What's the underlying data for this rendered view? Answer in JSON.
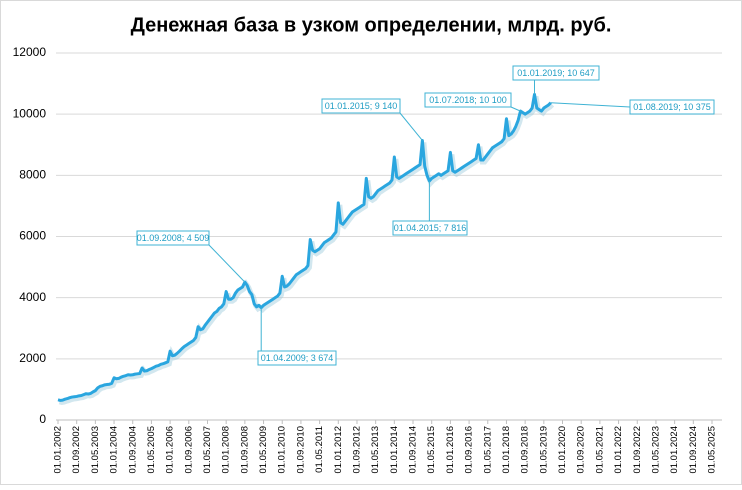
{
  "chart_data": {
    "type": "line",
    "title": "Денежная база в узком определении, млрд. руб.",
    "color": "#2aa6df",
    "ylim": [
      0,
      12000
    ],
    "yticks": [
      0,
      2000,
      4000,
      6000,
      8000,
      10000,
      12000
    ],
    "grid": true,
    "categories": [
      "01.01.2002",
      null,
      null,
      null,
      null,
      null,
      null,
      null,
      "01.09.2002",
      null,
      null,
      null,
      null,
      null,
      null,
      null,
      "01.05.2003",
      null,
      null,
      null,
      null,
      null,
      null,
      null,
      "01.01.2004",
      null,
      null,
      null,
      null,
      null,
      null,
      null,
      "01.09.2004",
      null,
      null,
      null,
      null,
      null,
      null,
      null,
      "01.05.2005",
      null,
      null,
      null,
      null,
      null,
      null,
      null,
      "01.01.2006",
      null,
      null,
      null,
      null,
      null,
      null,
      null,
      "01.09.2006",
      null,
      null,
      null,
      null,
      null,
      null,
      null,
      "01.05.2007",
      null,
      null,
      null,
      null,
      null,
      null,
      null,
      "01.01.2008",
      null,
      null,
      null,
      null,
      null,
      null,
      null,
      "01.09.2008",
      null,
      null,
      null,
      null,
      null,
      null,
      null,
      "01.05.2009",
      null,
      null,
      null,
      null,
      null,
      null,
      null,
      "01.01.2010",
      null,
      null,
      null,
      null,
      null,
      null,
      null,
      "01.09.2010",
      null,
      null,
      null,
      null,
      null,
      null,
      null,
      "01.05.2011",
      null,
      null,
      null,
      null,
      null,
      null,
      null,
      "01.01.2012",
      null,
      null,
      null,
      null,
      null,
      null,
      null,
      "01.09.2012",
      null,
      null,
      null,
      null,
      null,
      null,
      null,
      "01.05.2013",
      null,
      null,
      null,
      null,
      null,
      null,
      null,
      "01.01.2014",
      null,
      null,
      null,
      null,
      null,
      null,
      null,
      "01.09.2014",
      null,
      null,
      null,
      null,
      null,
      null,
      null,
      "01.05.2015",
      null,
      null,
      null,
      null,
      null,
      null,
      null,
      "01.01.2016",
      null,
      null,
      null,
      null,
      null,
      null,
      null,
      "01.09.2016",
      null,
      null,
      null,
      null,
      null,
      null,
      null,
      "01.05.2017",
      null,
      null,
      null,
      null,
      null,
      null,
      null,
      "01.01.2018",
      null,
      null,
      null,
      null,
      null,
      null,
      null,
      "01.09.2018",
      null,
      null,
      null,
      null,
      null,
      null,
      null,
      "01.05.2019",
      null,
      null,
      null,
      null,
      null,
      null,
      null,
      "01.01.2020",
      null,
      null,
      null,
      null,
      null,
      null,
      null,
      "01.09.2020",
      null,
      null,
      null,
      null,
      null,
      null,
      null,
      "01.05.2021",
      null,
      null,
      null,
      null,
      null,
      null,
      null,
      "01.01.2022",
      null,
      null,
      null,
      null,
      null,
      null,
      null,
      "01.09.2022",
      null,
      null,
      null,
      null,
      null,
      null,
      null,
      "01.05.2023",
      null,
      null,
      null,
      null,
      null,
      null,
      null,
      "01.01.2024",
      null,
      null,
      null,
      null,
      null,
      null,
      null,
      "01.09.2024",
      null,
      null,
      null,
      null,
      null,
      null,
      null,
      "01.05.2025"
    ],
    "values": [
      660,
      640,
      650,
      680,
      700,
      730,
      750,
      760,
      770,
      790,
      800,
      830,
      860,
      850,
      870,
      920,
      960,
      1050,
      1100,
      1120,
      1150,
      1160,
      1170,
      1200,
      1380,
      1350,
      1360,
      1400,
      1430,
      1450,
      1480,
      1470,
      1480,
      1500,
      1510,
      1520,
      1700,
      1600,
      1610,
      1650,
      1680,
      1720,
      1760,
      1780,
      1820,
      1840,
      1870,
      1900,
      2250,
      2100,
      2120,
      2180,
      2250,
      2330,
      2400,
      2450,
      2500,
      2550,
      2600,
      2700,
      3050,
      2950,
      2980,
      3100,
      3200,
      3300,
      3400,
      3500,
      3550,
      3650,
      3700,
      3800,
      4200,
      3950,
      3950,
      4000,
      4150,
      4250,
      4300,
      4350,
      4509,
      4400,
      4200,
      4100,
      3800,
      3700,
      3750,
      3674,
      3750,
      3800,
      3850,
      3900,
      3950,
      4000,
      4050,
      4150,
      4700,
      4350,
      4380,
      4450,
      4550,
      4650,
      4750,
      4800,
      4850,
      4900,
      4950,
      5050,
      5900,
      5550,
      5500,
      5550,
      5600,
      5700,
      5800,
      5850,
      5900,
      5950,
      6050,
      6150,
      7100,
      6450,
      6400,
      6500,
      6600,
      6700,
      6800,
      6850,
      6900,
      6950,
      7000,
      7050,
      7900,
      7300,
      7250,
      7300,
      7400,
      7500,
      7550,
      7600,
      7650,
      7700,
      7750,
      7850,
      8600,
      7950,
      7900,
      7950,
      8000,
      8050,
      8100,
      8150,
      8200,
      8250,
      8300,
      8350,
      9140,
      8300,
      8000,
      7816,
      7900,
      7950,
      8000,
      8050,
      8000,
      8050,
      8100,
      8150,
      8750,
      8150,
      8100,
      8150,
      8200,
      8250,
      8300,
      8350,
      8400,
      8450,
      8500,
      8550,
      9000,
      8500,
      8500,
      8600,
      8700,
      8800,
      8900,
      8950,
      9000,
      9050,
      9100,
      9200,
      9850,
      9300,
      9350,
      9450,
      9600,
      9800,
      10100,
      10050,
      10000,
      10050,
      10100,
      10200,
      10647,
      10200,
      10150,
      10100,
      10200,
      10250,
      10300,
      10375,
      null,
      null,
      null,
      null,
      null,
      null,
      null,
      null,
      null,
      null,
      null,
      null,
      null,
      null,
      null,
      null,
      null,
      null,
      null,
      null,
      null,
      null,
      null,
      null,
      null,
      null,
      null,
      null,
      null,
      null,
      null,
      null,
      null,
      null,
      null,
      null,
      null,
      null,
      null,
      null,
      null,
      null,
      null,
      null,
      null,
      null,
      null,
      null,
      null,
      null,
      null,
      null,
      null,
      null,
      null,
      null,
      null,
      null,
      null,
      null,
      null,
      null,
      null,
      null,
      null,
      null,
      null,
      null,
      null
    ],
    "annotations": [
      "01.09.2008; 4 509",
      "01.04.2009; 3 674",
      "01.01.2015; 9 140",
      "01.04.2015; 7 816",
      "01.07.2018; 10 100",
      "01.01.2019; 10 647",
      "01.08.2019; 10 375"
    ]
  }
}
